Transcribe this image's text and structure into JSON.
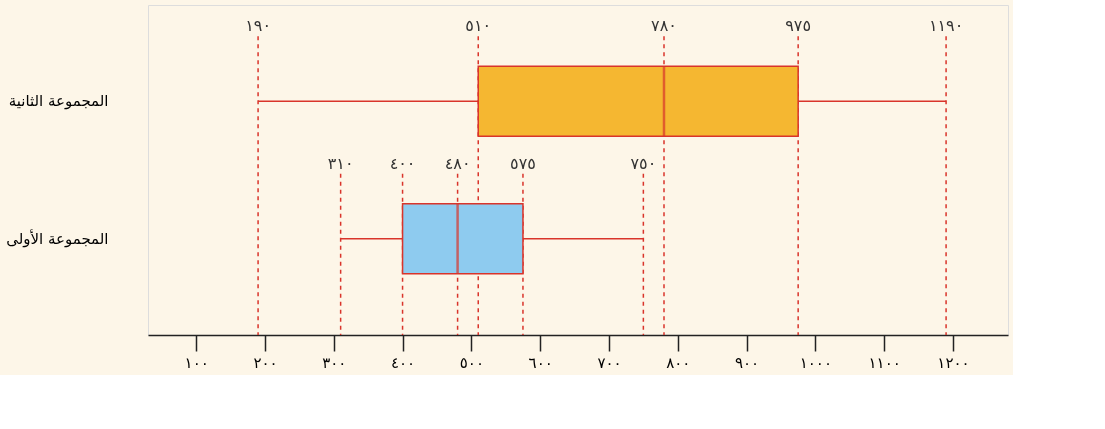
{
  "chart_data": {
    "type": "box",
    "orientation": "horizontal",
    "categories": [
      "المجموعة الثانية",
      "المجموعة الأولى"
    ],
    "colors": [
      "#f5b731",
      "#8ecbef"
    ],
    "boxes": [
      {
        "low": 190,
        "q1": 510,
        "median": 780,
        "q3": 975,
        "high": 1190
      },
      {
        "low": 310,
        "q1": 400,
        "median": 480,
        "q3": 575,
        "high": 750
      }
    ],
    "xlim": [
      30,
      1280
    ],
    "xticks": [
      {
        "value": 100,
        "label": "١٠٠"
      },
      {
        "value": 200,
        "label": "٢٠٠"
      },
      {
        "value": 300,
        "label": "٣٠٠"
      },
      {
        "value": 400,
        "label": "٤٠٠"
      },
      {
        "value": 500,
        "label": "٥٠٠"
      },
      {
        "value": 600,
        "label": "٦٠٠"
      },
      {
        "value": 700,
        "label": "٧٠٠"
      },
      {
        "value": 800,
        "label": "٨٠٠"
      },
      {
        "value": 900,
        "label": "٩٠٠"
      },
      {
        "value": 1000,
        "label": "١٠٠٠"
      },
      {
        "value": 1100,
        "label": "١١٠٠"
      },
      {
        "value": 1200,
        "label": "١٢٠٠"
      }
    ],
    "ref_lines": [
      {
        "axis": "x",
        "value": 190,
        "label": "١٩٠",
        "color": "#d9342b",
        "line_style": "dashed"
      },
      {
        "axis": "x",
        "value": 510,
        "label": "٥١٠",
        "color": "#d9342b",
        "line_style": "dashed"
      },
      {
        "axis": "x",
        "value": 780,
        "label": "٧٨٠",
        "color": "#d9342b",
        "line_style": "dashed"
      },
      {
        "axis": "x",
        "value": 975,
        "label": "٩٧٥",
        "color": "#d9342b",
        "line_style": "dashed"
      },
      {
        "axis": "x",
        "value": 1190,
        "label": "١١٩٠",
        "color": "#d9342b",
        "line_style": "dashed"
      },
      {
        "axis": "x",
        "value": 310,
        "label": "٣١٠",
        "color": "#d9342b",
        "line_style": "dashed"
      },
      {
        "axis": "x",
        "value": 400,
        "label": "٤٠٠",
        "color": "#d9342b",
        "line_style": "dashed"
      },
      {
        "axis": "x",
        "value": 480,
        "label": "٤٨٠",
        "color": "#d9342b",
        "line_style": "dashed"
      },
      {
        "axis": "x",
        "value": 575,
        "label": "٥٧٥",
        "color": "#d9342b",
        "line_style": "dashed"
      },
      {
        "axis": "x",
        "value": 750,
        "label": "٧٥٠",
        "color": "#d9342b",
        "line_style": "dashed"
      }
    ],
    "grid": false
  }
}
